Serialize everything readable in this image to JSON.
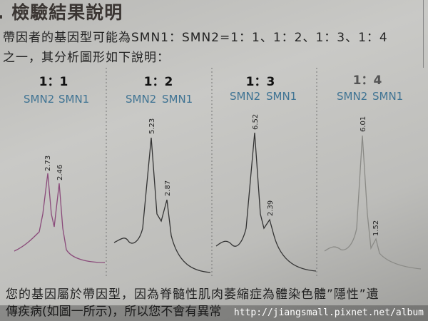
{
  "title": ". 檢驗結果說明",
  "intro_line1": "帶因者的基因型可能為SMN1：SMN2=1：1、1：2、1：3、1：4",
  "intro_line2": "之一，其分析圖形如下說明：",
  "panels": [
    {
      "ratio": "1：1",
      "left_label": "SMN2",
      "right_label": "SMN1",
      "peak_smn2": "2.73",
      "peak_smn1": "2.46",
      "trace_color": "#8a4a7a"
    },
    {
      "ratio": "1：2",
      "left_label": "SMN2",
      "right_label": "SMN1",
      "peak_smn2": "5.23",
      "peak_smn1": "2.87",
      "trace_color": "#333333"
    },
    {
      "ratio": "1：3",
      "left_label": "SMN2",
      "right_label": "SMN1",
      "peak_smn2": "6.52",
      "peak_smn1": "2.39",
      "trace_color": "#333333"
    },
    {
      "ratio": "1：4",
      "left_label": "SMN2",
      "right_label": "SMN1",
      "peak_smn2": "6.01",
      "peak_smn1": "1.52",
      "trace_color": "#8a8a86"
    }
  ],
  "body_line1": "您的基因屬於帶因型，因為脊髓性肌肉萎縮症為體染色體”隱性”遺",
  "body_line2": "傳疾病(如圖一所示)，所以您不會有異常",
  "watermark": "http://jiangsmall.pixnet.net/album"
}
